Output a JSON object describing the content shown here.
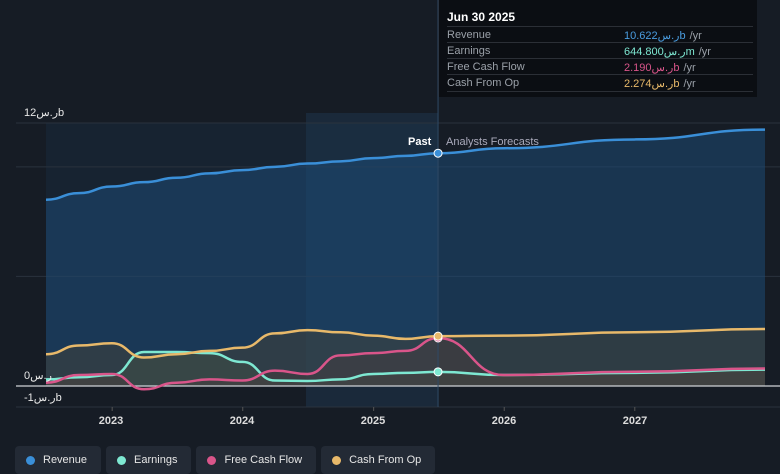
{
  "tooltip": {
    "date": "Jun 30 2025",
    "rows": [
      {
        "label": "Revenue",
        "value": "10.622ر.سb",
        "unit": "/yr",
        "color": "#4a9de0"
      },
      {
        "label": "Earnings",
        "value": "644.800ر.سm",
        "unit": "/yr",
        "color": "#7ee8d2"
      },
      {
        "label": "Free Cash Flow",
        "value": "2.190ر.سb",
        "unit": "/yr",
        "color": "#d9558a"
      },
      {
        "label": "Cash From Op",
        "value": "2.274ر.سb",
        "unit": "/yr",
        "color": "#e8b96a"
      }
    ]
  },
  "labels": {
    "past": "Past",
    "forecast": "Analysts Forecasts"
  },
  "legend": [
    {
      "label": "Revenue",
      "color": "#3a8fd8"
    },
    {
      "label": "Earnings",
      "color": "#7ee8d2"
    },
    {
      "label": "Free Cash Flow",
      "color": "#d9558a"
    },
    {
      "label": "Cash From Op",
      "color": "#e8b96a"
    }
  ],
  "chart_data": {
    "type": "line",
    "yunit": "ر.س billions",
    "ylim": [
      -1,
      12
    ],
    "ytick_labels": [
      "12ر.سb",
      "0ر.س",
      "-1ر.سb"
    ],
    "yticks": [
      12,
      0,
      -1
    ],
    "xlim": [
      "2022-06-30",
      "2027-12-31"
    ],
    "xtick_labels": [
      "2023",
      "2024",
      "2025",
      "2026",
      "2027"
    ],
    "past_forecast_split": "2025-06-30",
    "grid": true,
    "x": [
      "2022-06-30",
      "2022-09-30",
      "2022-12-31",
      "2023-03-31",
      "2023-06-30",
      "2023-09-30",
      "2023-12-31",
      "2024-03-31",
      "2024-06-30",
      "2024-09-30",
      "2024-12-31",
      "2025-03-31",
      "2025-06-30",
      "2025-12-31",
      "2026-12-31",
      "2027-12-31"
    ],
    "series": [
      {
        "name": "Revenue",
        "color": "#3a8fd8",
        "values": [
          8.5,
          8.8,
          9.1,
          9.3,
          9.5,
          9.7,
          9.85,
          10.0,
          10.15,
          10.25,
          10.4,
          10.5,
          10.622,
          10.85,
          11.25,
          11.7
        ]
      },
      {
        "name": "Earnings",
        "color": "#7ee8d2",
        "values": [
          0.3,
          0.4,
          0.5,
          1.55,
          1.55,
          1.5,
          1.1,
          0.25,
          0.23,
          0.3,
          0.55,
          0.6,
          0.645,
          0.5,
          0.6,
          0.75
        ]
      },
      {
        "name": "Free Cash Flow",
        "color": "#d9558a",
        "values": [
          0.15,
          0.5,
          0.55,
          -0.15,
          0.15,
          0.3,
          0.25,
          0.7,
          0.55,
          1.4,
          1.5,
          1.6,
          2.19,
          0.5,
          0.65,
          0.8
        ]
      },
      {
        "name": "Cash From Op",
        "color": "#e8b96a",
        "values": [
          1.45,
          1.85,
          1.95,
          1.3,
          1.45,
          1.6,
          1.75,
          2.4,
          2.55,
          2.45,
          2.3,
          2.15,
          2.274,
          2.3,
          2.45,
          2.6
        ]
      }
    ]
  }
}
